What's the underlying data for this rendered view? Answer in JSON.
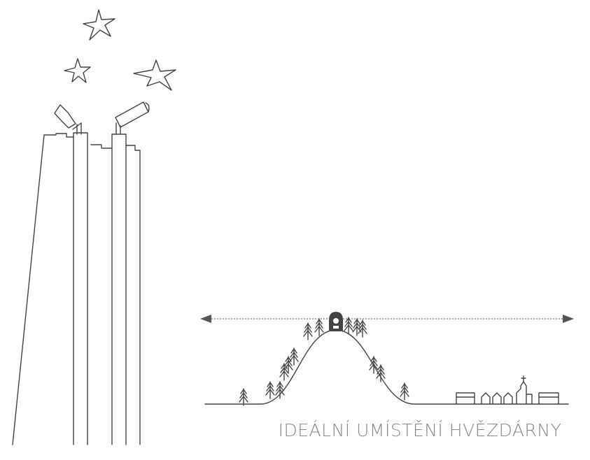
{
  "caption": "IDEÁLNÍ UMÍSTĚNÍ HVĚZDÁRNY"
}
